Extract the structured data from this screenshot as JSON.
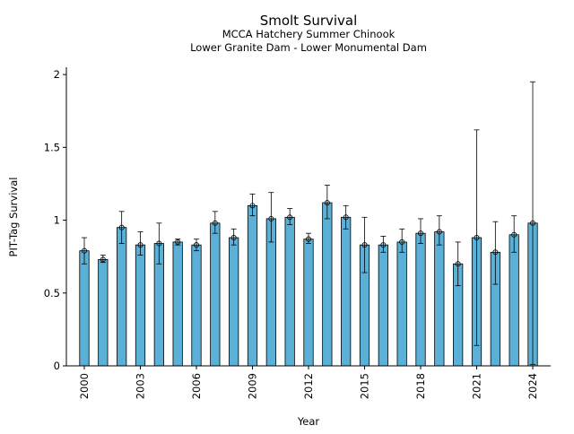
{
  "chart_data": {
    "type": "bar",
    "title": "Smolt Survival",
    "subtitle_1": "MCCA Hatchery Summer Chinook",
    "subtitle_2": "Lower Granite Dam - Lower Monumental Dam",
    "xlabel": "Year",
    "ylabel": "PIT-Tag Survival",
    "ylim": [
      0,
      2.05
    ],
    "yticks": [
      0,
      0.5,
      1,
      1.5,
      2
    ],
    "ytick_labels": [
      "0",
      "0.5",
      "1",
      "1.5",
      "2"
    ],
    "xticks": [
      2000,
      2003,
      2006,
      2009,
      2012,
      2015,
      2018,
      2021,
      2024
    ],
    "xtick_labels": [
      "2000",
      "2003",
      "2006",
      "2009",
      "2012",
      "2015",
      "2018",
      "2021",
      "2024"
    ],
    "grid": false,
    "bar_color": "#5ab0d6",
    "categories": [
      2000,
      2001,
      2002,
      2003,
      2004,
      2005,
      2006,
      2007,
      2008,
      2009,
      2010,
      2011,
      2012,
      2013,
      2014,
      2015,
      2016,
      2017,
      2018,
      2019,
      2020,
      2021,
      2022,
      2023,
      2024
    ],
    "values": [
      0.79,
      0.73,
      0.95,
      0.83,
      0.84,
      0.85,
      0.83,
      0.98,
      0.88,
      1.1,
      1.01,
      1.02,
      0.87,
      1.12,
      1.02,
      0.83,
      0.83,
      0.85,
      0.91,
      0.92,
      0.7,
      0.88,
      0.78,
      0.9,
      0.98
    ],
    "error_low": [
      0.7,
      0.71,
      0.84,
      0.76,
      0.7,
      0.83,
      0.79,
      0.91,
      0.83,
      1.03,
      0.85,
      0.97,
      0.84,
      1.01,
      0.94,
      0.64,
      0.78,
      0.78,
      0.84,
      0.83,
      0.55,
      0.14,
      0.56,
      0.78,
      0.01
    ],
    "error_high": [
      0.88,
      0.76,
      1.06,
      0.92,
      0.98,
      0.87,
      0.87,
      1.06,
      0.94,
      1.18,
      1.19,
      1.08,
      0.91,
      1.24,
      1.1,
      1.02,
      0.89,
      0.94,
      1.01,
      1.03,
      0.85,
      1.62,
      0.99,
      1.03,
      1.95
    ]
  }
}
